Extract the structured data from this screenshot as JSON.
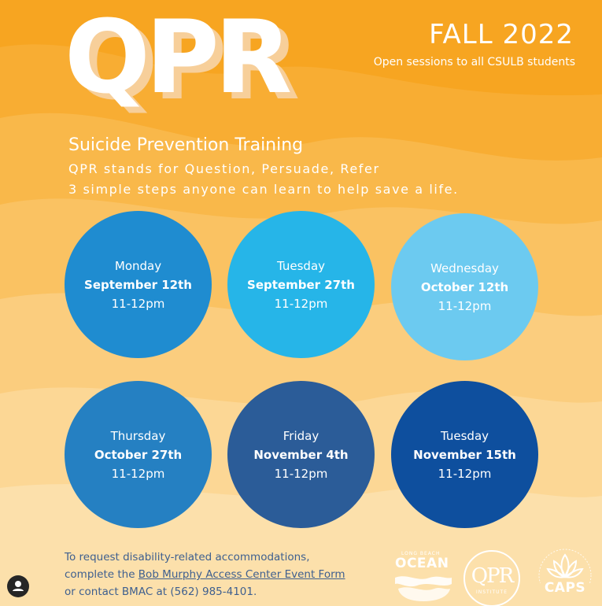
{
  "header": {
    "title": "QPR",
    "term": "FALL 2022",
    "tagline": "Open sessions to all CSULB students"
  },
  "intro": {
    "subtitle": "Suicide Prevention Training",
    "line1": "QPR stands for Question, Persuade, Refer",
    "line2": "3 simple steps anyone can learn to help save a life."
  },
  "sessions": [
    {
      "day": "Monday",
      "date": "September 12th",
      "time": "11-12pm",
      "color": "#1f8cd0"
    },
    {
      "day": "Tuesday",
      "date": "September 27th",
      "time": "11-12pm",
      "color": "#26b5e8"
    },
    {
      "day": "Wednesday",
      "date": "October 12th",
      "time": "11-12pm",
      "color": "#6ccaf0"
    },
    {
      "day": "Thursday",
      "date": "October 27th",
      "time": "11-12pm",
      "color": "#2580c2"
    },
    {
      "day": "Friday",
      "date": "November 4th",
      "time": "11-12pm",
      "color": "#2b5c98"
    },
    {
      "day": "Tuesday",
      "date": "November 15th",
      "time": "11-12pm",
      "color": "#0e4f9e"
    }
  ],
  "footer": {
    "access_prefix": "To request disability-related accommodations, complete the ",
    "access_link": "Bob Murphy Access Center Event Form",
    "access_suffix": " or contact BMAC at (562) 985-4101."
  },
  "logos": {
    "ocean_top": "LONG BEACH",
    "ocean": "OCEAN",
    "qpr": "QPR",
    "qpr_sub": "INSTITUTE",
    "caps": "CAPS"
  },
  "colors": {
    "background": "#f7a521",
    "accent_text": "#3e5f8f"
  },
  "icons": {
    "profile": "user-avatar-icon"
  }
}
